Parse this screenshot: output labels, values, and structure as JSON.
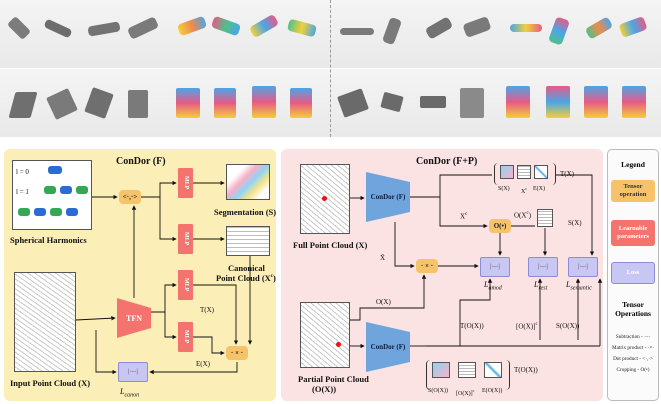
{
  "left_panel": {
    "title": "ConDor (F)",
    "harmonics": {
      "label": "Spherical Harmonics",
      "l0": "l = 0",
      "l1": "l = 1"
    },
    "input_label": "Input Point Cloud (X)",
    "ops": {
      "inner_product": "<·,·>",
      "matrix_product": "· × ·"
    },
    "mlp": "MLP",
    "tfn": "TFN",
    "segmentation_label": "Segmentation (S)",
    "canonical_label_1": "Canonical",
    "canonical_label_2": "Point Cloud (X",
    "canonical_sup": "c",
    "canonical_close": ")",
    "t_x": "T(X)",
    "e_x": "E(X)",
    "loss_canon": "L",
    "loss_canon_sub": "canon",
    "loss_inner": "|·–·|"
  },
  "mid_panel": {
    "title": "ConDor (F+P)",
    "condor": "ConDor (F)",
    "full_label": "Full Point Cloud (X)",
    "partial_label_1": "Partial Point Cloud",
    "partial_label_2": "(O(X))",
    "o_op": "O(•)",
    "matmul": "· × ·",
    "xc": "X",
    "xc_sup": "c",
    "x_bar": "X̄",
    "o_x": "O(X)",
    "o_xc": "O(X",
    "o_xc_sup": "c",
    "o_xc_close": ")",
    "s_x_top": "S(X)",
    "xc_top": "X",
    "xc_top_sup": "c",
    "e_x_top": "E(X)",
    "t_x_top": "T(X)",
    "s_x": "S(X)",
    "l_amod": "L",
    "l_amod_sub": "amod",
    "l_rest": "L",
    "l_rest_sub": "rest",
    "l_semantic": "L",
    "l_semantic_sub": "semantic",
    "t_ox": "T(O(X))",
    "ox_c": "[O(X)]",
    "ox_c_sup": "c",
    "s_ox": "S(O(X))",
    "bottom_s": "S(O(X))",
    "bottom_oc": "[O(X)]",
    "bottom_oc_sup": "c",
    "bottom_e": "E(O(X))",
    "bottom_t": "T(O(X))",
    "loss_inner": "|·–·|"
  },
  "legend": {
    "title": "Legend",
    "tensor_op": "Tensor operation",
    "learnable": "Learnable parameters",
    "loss": "Loss",
    "tensor_ops_title": "Tensor Operations",
    "subtraction": "Subtraction - ·–·",
    "matrix": "Matrix product - ·×·",
    "dot": "Dot product - <·,·>",
    "cropping": "Cropping - O(•)"
  },
  "colors": {
    "left_bg": "#fbeeb7",
    "mid_bg": "#fbe3e3",
    "op": "#f7c36a",
    "learnable": "#f4736f",
    "condor": "#6fa4dd",
    "loss": "#c8c6f2"
  }
}
